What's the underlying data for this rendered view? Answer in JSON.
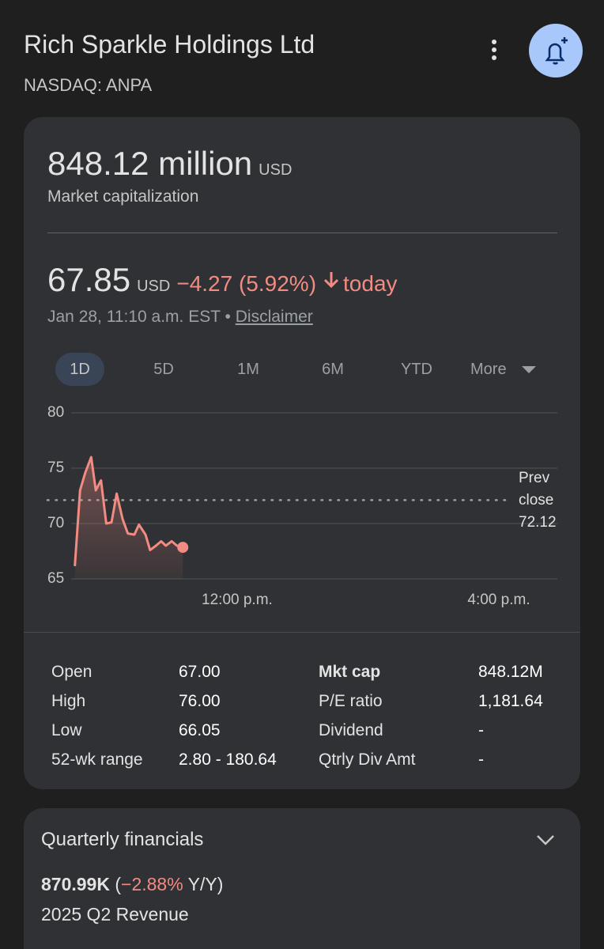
{
  "header": {
    "title": "Rich Sparkle Holdings Ltd",
    "exchange": "NASDAQ: ANPA"
  },
  "market_cap": {
    "value": "848.12 million",
    "currency": "USD",
    "label": "Market capitalization"
  },
  "price": {
    "value": "67.85",
    "currency": "USD",
    "change": "−4.27 (5.92%)",
    "period": "today",
    "timestamp": "Jan 28, 11:10 a.m. EST",
    "separator": "•",
    "disclaimer": "Disclaimer"
  },
  "ranges": {
    "items": [
      "1D",
      "5D",
      "1M",
      "6M",
      "YTD",
      "More"
    ],
    "selected": "1D"
  },
  "chart_data": {
    "type": "line",
    "x": [
      9.52,
      9.6,
      9.68,
      9.77,
      9.84,
      9.92,
      10.0,
      10.08,
      10.16,
      10.25,
      10.33,
      10.43,
      10.5,
      10.6,
      10.67,
      10.76,
      10.84,
      10.91,
      11.0,
      11.08,
      11.17
    ],
    "values": [
      66.15,
      73.0,
      74.6,
      76.0,
      73.0,
      73.9,
      70.0,
      70.1,
      72.7,
      70.4,
      69.1,
      69.0,
      69.9,
      69.0,
      67.6,
      68.0,
      68.4,
      68.0,
      68.4,
      68.0,
      67.85
    ],
    "color": "#f28b82",
    "xlim": [
      9.5,
      16
    ],
    "xticks": [
      {
        "value": 12,
        "label": "12:00 p.m."
      },
      {
        "value": 16,
        "label": "4:00 p.m."
      }
    ],
    "ylim": [
      65,
      80
    ],
    "yticks": [
      80,
      75,
      70,
      65
    ],
    "grid": true,
    "prev_close": {
      "label": "Prev close",
      "value": 72.12
    }
  },
  "stats": {
    "rows": [
      [
        "Open",
        "67.00",
        "Mkt cap",
        "848.12M"
      ],
      [
        "High",
        "76.00",
        "P/E ratio",
        "1,181.64"
      ],
      [
        "Low",
        "66.05",
        "Dividend",
        "-"
      ],
      [
        "52-wk range",
        "2.80 - 180.64",
        "Qtrly Div Amt",
        "-"
      ]
    ]
  },
  "financials": {
    "title": "Quarterly financials",
    "value": "870.99K",
    "comparison": [
      "(",
      "−2.88%",
      " Y/Y)"
    ],
    "label": "2025 Q2 Revenue"
  }
}
